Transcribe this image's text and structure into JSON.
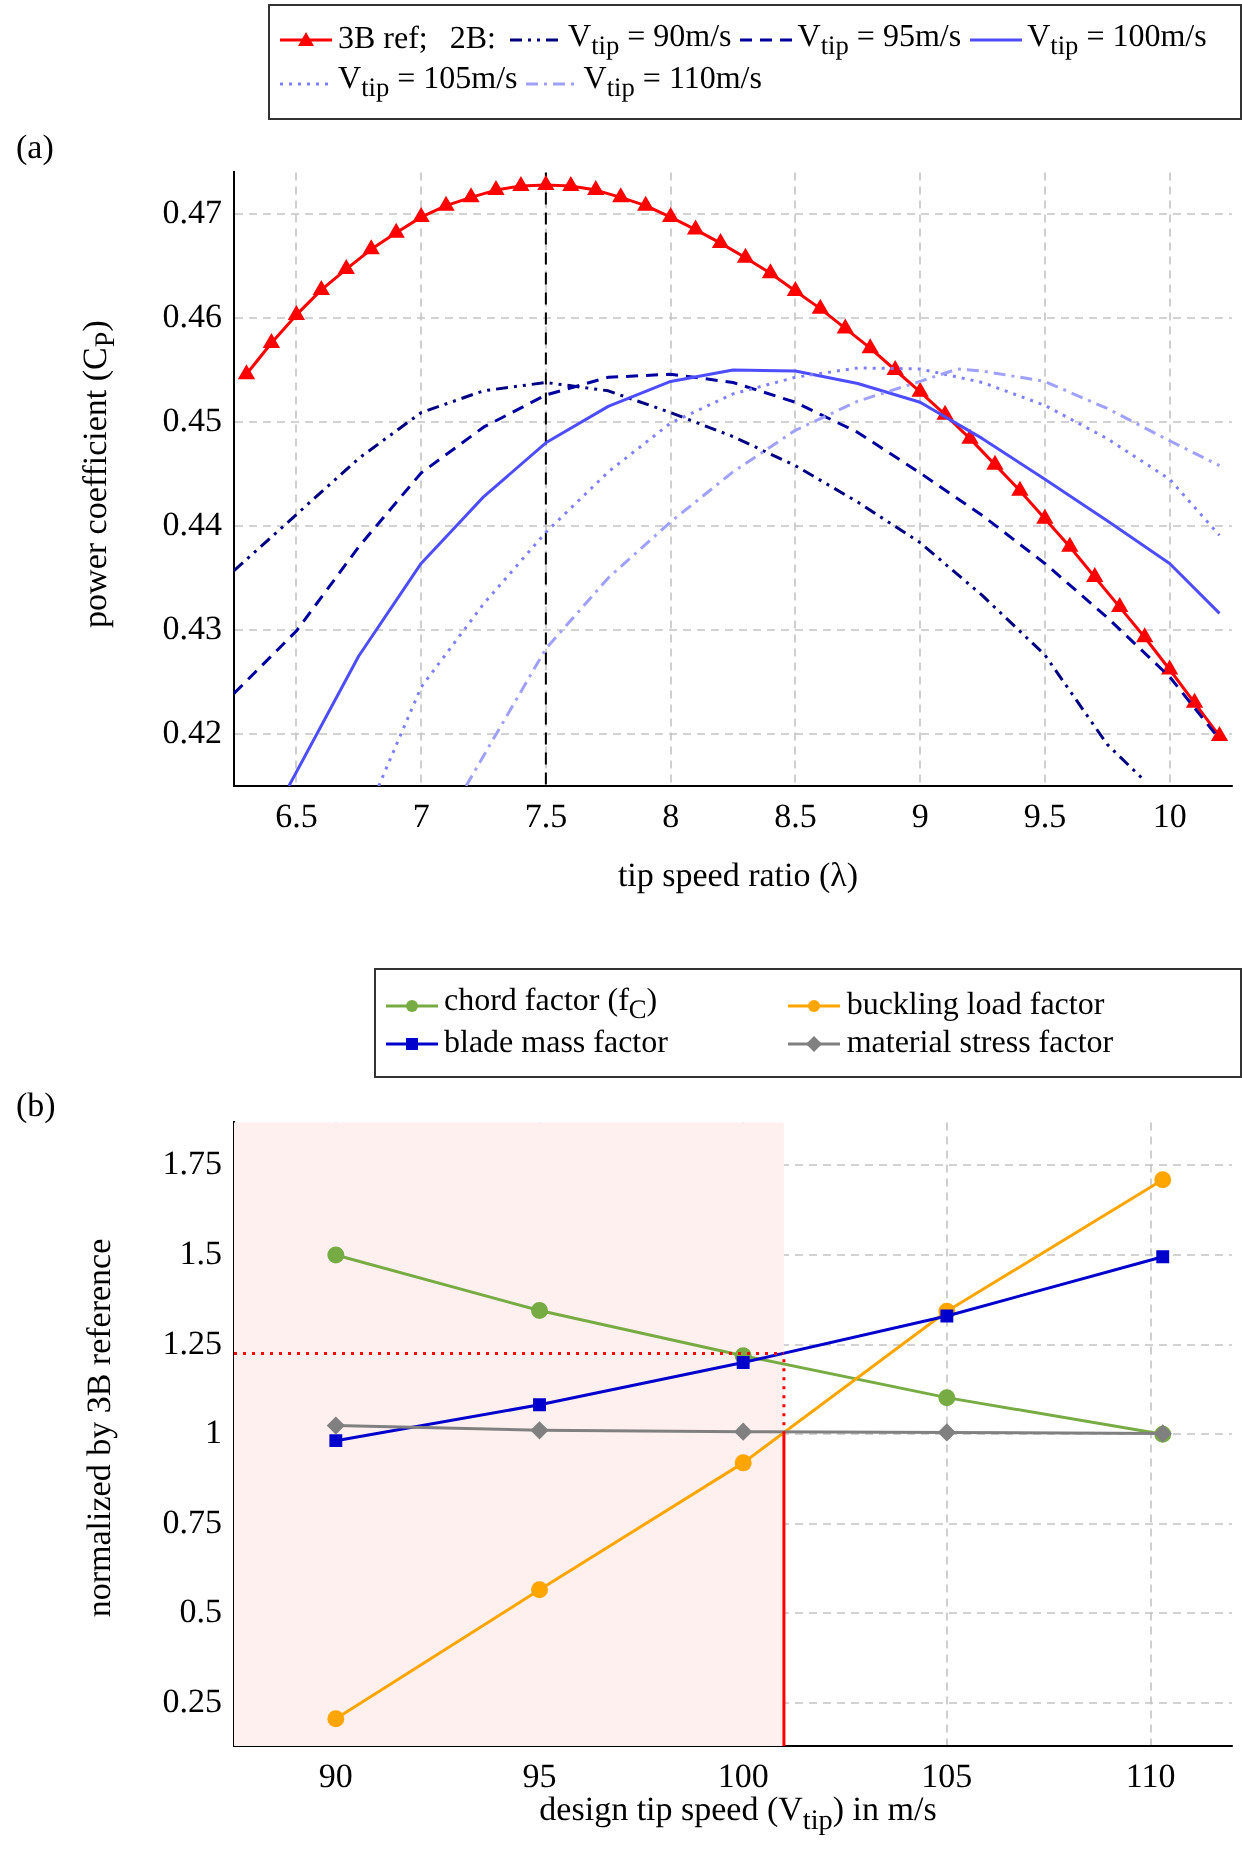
{
  "chart_data": [
    {
      "type": "line",
      "title": "(a)",
      "xlabel": "tip speed ratio (λ)",
      "ylabel": "power coefficient (C$_{P}$)",
      "legend": "top right",
      "legend_title": "2B:",
      "grid": true,
      "xlim": [
        6.25,
        10.25
      ],
      "ylim": [
        0.415,
        0.474
      ],
      "xticks": [
        6.5,
        7,
        7.5,
        8,
        8.5,
        9,
        9.5,
        10
      ],
      "yticks": [
        0.42,
        0.43,
        0.44,
        0.45,
        0.46,
        0.47
      ],
      "ref_lines": [
        {
          "axis": "x",
          "value": 7.5,
          "color": "#000000",
          "line_style": "dashed"
        }
      ],
      "series": [
        {
          "name": "3B ref;",
          "color": "#ff0000",
          "marker": "triangle",
          "line_style": "solid",
          "x": [
            6.3,
            6.4,
            6.5,
            6.6,
            6.7,
            6.8,
            6.9,
            7.0,
            7.1,
            7.2,
            7.3,
            7.4,
            7.5,
            7.6,
            7.7,
            7.8,
            7.9,
            8.0,
            8.1,
            8.2,
            8.3,
            8.4,
            8.5,
            8.6,
            8.7,
            8.8,
            8.9,
            9.0,
            9.1,
            9.2,
            9.3,
            9.4,
            9.5,
            9.6,
            9.7,
            9.8,
            9.9,
            10.0,
            10.1,
            10.2
          ],
          "values": [
            0.4546,
            0.4576,
            0.4603,
            0.4627,
            0.4647,
            0.4666,
            0.4682,
            0.4697,
            0.4708,
            0.4716,
            0.4723,
            0.4727,
            0.4728,
            0.4727,
            0.4723,
            0.4716,
            0.4708,
            0.4697,
            0.4685,
            0.4672,
            0.4658,
            0.4643,
            0.4626,
            0.4609,
            0.459,
            0.4571,
            0.455,
            0.4529,
            0.4507,
            0.4484,
            0.4459,
            0.4434,
            0.4407,
            0.438,
            0.4351,
            0.4322,
            0.4293,
            0.4262,
            0.423,
            0.4198
          ]
        },
        {
          "name": "V$_{tip}$ = 90m/s",
          "color": "#000080",
          "marker": "none",
          "line_style": "dashdotdot",
          "x": [
            6.25,
            6.5,
            6.75,
            7,
            7.25,
            7.5,
            7.75,
            8,
            8.25,
            8.5,
            8.75,
            9,
            9.25,
            9.5,
            9.75,
            9.9
          ],
          "values": [
            0.4357,
            0.4411,
            0.4465,
            0.4509,
            0.453,
            0.4538,
            0.453,
            0.4509,
            0.4486,
            0.4458,
            0.4423,
            0.4384,
            0.4333,
            0.4276,
            0.419,
            0.4155
          ]
        },
        {
          "name": "V$_{tip}$ = 95m/s",
          "color": "#0000a0",
          "marker": "none",
          "line_style": "dashed",
          "x": [
            6.25,
            6.5,
            6.75,
            7,
            7.25,
            7.5,
            7.75,
            8,
            8.25,
            8.5,
            8.75,
            9,
            9.25,
            9.5,
            9.75,
            10,
            10.2
          ],
          "values": [
            0.4239,
            0.4299,
            0.438,
            0.4451,
            0.4495,
            0.4526,
            0.4543,
            0.4546,
            0.4538,
            0.4519,
            0.449,
            0.4451,
            0.441,
            0.4364,
            0.4312,
            0.4255,
            0.4195
          ]
        },
        {
          "name": "V$_{tip}$ = 100m/s",
          "color": "#4d4dff",
          "marker": "none",
          "line_style": "solid",
          "x": [
            6.47,
            6.75,
            7,
            7.25,
            7.5,
            7.75,
            8,
            8.25,
            8.5,
            8.75,
            9,
            9.25,
            9.5,
            9.75,
            10,
            10.2
          ],
          "values": [
            0.415,
            0.4275,
            0.4364,
            0.4428,
            0.448,
            0.4515,
            0.4539,
            0.455,
            0.4549,
            0.4537,
            0.4519,
            0.4484,
            0.4445,
            0.4405,
            0.4364,
            0.4316
          ]
        },
        {
          "name": "V$_{tip}$ = 105m/s",
          "color": "#8080ff",
          "marker": "none",
          "line_style": "dotted",
          "x": [
            6.83,
            7,
            7.25,
            7.5,
            7.75,
            8,
            8.25,
            8.5,
            8.75,
            9,
            9.25,
            9.5,
            9.75,
            10,
            10.2
          ],
          "values": [
            0.415,
            0.4245,
            0.4325,
            0.4394,
            0.4452,
            0.4499,
            0.4527,
            0.4543,
            0.4552,
            0.4551,
            0.4538,
            0.4516,
            0.4484,
            0.4445,
            0.4391
          ]
        },
        {
          "name": "V$_{tip}$ = 110m/s",
          "color": "#a0a0ff",
          "marker": "none",
          "line_style": "dashdot",
          "x": [
            7.18,
            7.5,
            7.75,
            8,
            8.25,
            8.5,
            8.75,
            9,
            9.15,
            9.25,
            9.5,
            9.75,
            10,
            10.2
          ],
          "values": [
            0.415,
            0.4282,
            0.435,
            0.4404,
            0.4452,
            0.4492,
            0.452,
            0.4539,
            0.4551,
            0.4549,
            0.4539,
            0.4513,
            0.4482,
            0.4458
          ]
        }
      ]
    },
    {
      "type": "line",
      "title": "(b)",
      "xlabel": "design tip speed (V$_{tip}$) in m/s",
      "ylabel": "normalized by 3B reference",
      "legend": "top right",
      "grid": true,
      "xlim": [
        87.5,
        112
      ],
      "ylim": [
        0.13,
        1.87
      ],
      "xticks": [
        90,
        95,
        100,
        105,
        110
      ],
      "yticks": [
        0.25,
        0.5,
        0.75,
        1,
        1.25,
        1.5,
        1.75
      ],
      "bands": [
        {
          "axis": "x",
          "from": 87.5,
          "to": 101,
          "color": "#fff0f0"
        }
      ],
      "series": [
        {
          "name": "chord factor (f$_{C}$)",
          "color": "#77ab43",
          "marker": "circle",
          "line_style": "solid",
          "x": [
            90,
            95,
            100,
            105,
            110.3
          ],
          "values": [
            1.5,
            1.345,
            1.219,
            1.102,
            1.0
          ]
        },
        {
          "name": "buckling load factor",
          "color": "#ffa500",
          "marker": "circle",
          "line_style": "solid",
          "x": [
            90,
            95,
            100,
            105,
            110.3
          ],
          "values": [
            0.206,
            0.566,
            0.92,
            1.343,
            1.71
          ]
        },
        {
          "name": "blade mass factor",
          "color": "#0000cc",
          "marker": "square",
          "line_style": "solid",
          "x": [
            90,
            95,
            100,
            105,
            110.3
          ],
          "values": [
            0.982,
            1.082,
            1.2,
            1.33,
            1.495
          ]
        },
        {
          "name": "material stress factor",
          "color": "#808080",
          "marker": "diamond",
          "line_style": "solid",
          "x": [
            90,
            95,
            100,
            105,
            110.3
          ],
          "values": [
            1.024,
            1.011,
            1.007,
            1.005,
            1.002
          ]
        },
        {
          "color": "#ff0000",
          "marker": "none",
          "line_style": "solid",
          "x": [
            101,
            101
          ],
          "values": [
            0.13,
            1
          ]
        },
        {
          "color": "#ff0000",
          "marker": "none",
          "line_style": "dotted",
          "x": [
            101,
            101
          ],
          "values": [
            1,
            1.225
          ]
        },
        {
          "color": "#ff0000",
          "marker": "none",
          "line_style": "dotted",
          "x": [
            87.5,
            101
          ],
          "values": [
            1.225,
            1.225
          ]
        }
      ]
    }
  ]
}
